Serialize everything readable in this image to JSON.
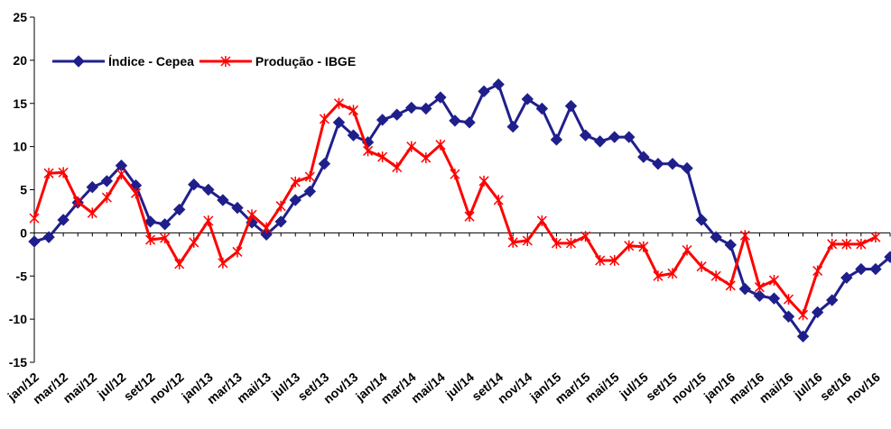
{
  "chart_data": {
    "type": "line",
    "categories": [
      "jan/12",
      null,
      "mar/12",
      null,
      "mai/12",
      null,
      "jul/12",
      null,
      "set/12",
      null,
      "nov/12",
      null,
      "jan/13",
      null,
      "mar/13",
      null,
      "mai/13",
      null,
      "jul/13",
      null,
      "set/13",
      null,
      "nov/13",
      null,
      "jan/14",
      null,
      "mar/14",
      null,
      "mai/14",
      null,
      "jul/14",
      null,
      "set/14",
      null,
      "nov/14",
      null,
      "jan/15",
      null,
      "mar/15",
      null,
      "mai/15",
      null,
      "jul/15",
      null,
      "set/15",
      null,
      "nov/15",
      null,
      "jan/16",
      null,
      "mar/16",
      null,
      "mai/16",
      null,
      "jul/16",
      null,
      "set/16",
      null,
      "nov/16",
      null
    ],
    "series": [
      {
        "name": "Índice - Cepea",
        "color": "#1f1f8c",
        "marker": "diamond",
        "values": [
          -1,
          -0.5,
          1.5,
          3.5,
          5.3,
          6,
          7.8,
          5.5,
          1.3,
          1,
          2.7,
          5.6,
          5,
          3.8,
          2.9,
          1.2,
          -0.2,
          1.3,
          3.8,
          4.8,
          8,
          12.8,
          11.3,
          10.5,
          13.1,
          13.7,
          14.5,
          14.4,
          15.7,
          13,
          12.8,
          16.4,
          17.2,
          12.3,
          15.5,
          14.4,
          10.8,
          14.7,
          11.3,
          10.6,
          11.1,
          11.1,
          8.8,
          8,
          8,
          7.5,
          1.5,
          -0.5,
          -1.4,
          -6.5,
          -7.3,
          -7.6,
          -9.7,
          -12,
          -9.2,
          -7.8,
          -5.2,
          -4.2,
          -4.2,
          -2.8
        ]
      },
      {
        "name": "Produção - IBGE",
        "color": "#ff0000",
        "marker": "star",
        "values": [
          1.7,
          6.9,
          7,
          3.6,
          2.3,
          4.1,
          6.8,
          4.6,
          -0.8,
          -0.6,
          -3.6,
          -1.1,
          1.4,
          -3.5,
          -2.2,
          2.1,
          0.6,
          3.1,
          5.9,
          6.5,
          13.2,
          15,
          14.2,
          9.5,
          8.8,
          7.6,
          10,
          8.7,
          10.2,
          6.8,
          1.9,
          6,
          3.8,
          -1.1,
          -0.9,
          1.4,
          -1.2,
          -1.2,
          -0.4,
          -3.2,
          -3.2,
          -1.5,
          -1.6,
          -5,
          -4.7,
          -2,
          -3.9,
          -5,
          -6.1,
          -0.3,
          -6.3,
          -5.5,
          -7.7,
          -9.5,
          -4.4,
          -1.3,
          -1.3,
          -1.3,
          -0.5,
          null
        ]
      }
    ],
    "ylim": [
      -15,
      25
    ],
    "yticks": [
      -15,
      -10,
      -5,
      0,
      5,
      10,
      15,
      20,
      25
    ],
    "grid": false,
    "legend": "top-left"
  }
}
